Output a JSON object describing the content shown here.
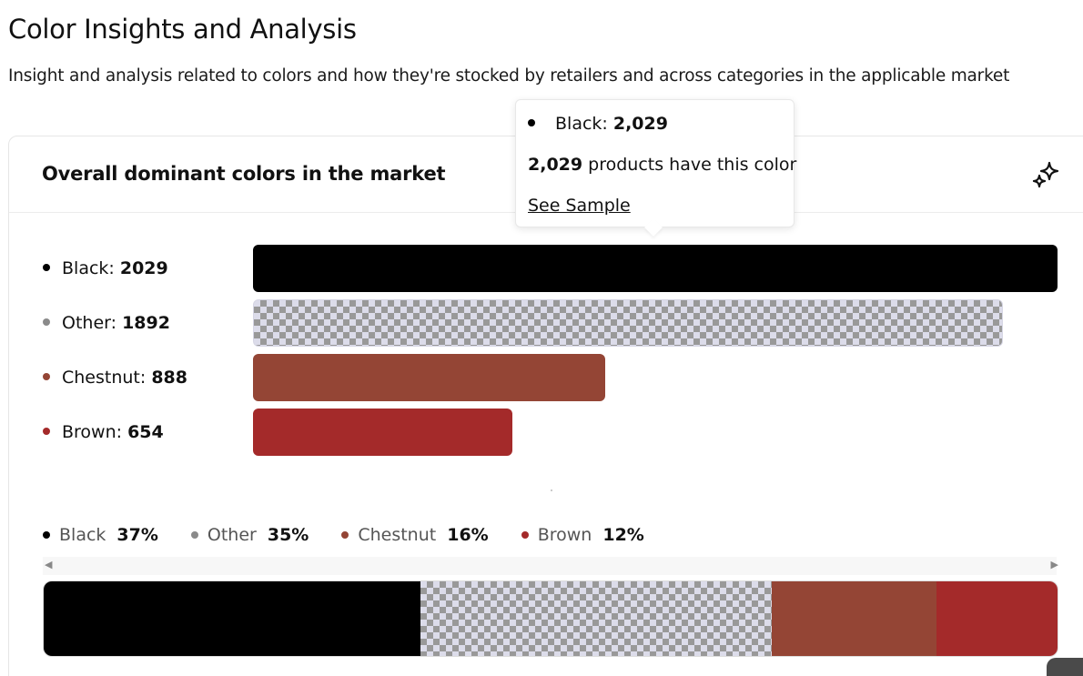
{
  "page": {
    "title": "Color Insights and Analysis",
    "subtitle": "Insight and analysis related to colors and how they're stocked by retailers and across categories in the applicable market"
  },
  "card": {
    "title": "Overall dominant colors in the market",
    "icon": "sparkle-icon"
  },
  "tooltip": {
    "label": "Black: ",
    "value": "2,029",
    "count": "2,029",
    "suffix": " products have this color",
    "link": "See Sample"
  },
  "chart_data": [
    {
      "type": "bar",
      "orientation": "horizontal",
      "categories": [
        "Black",
        "Other",
        "Chestnut",
        "Brown"
      ],
      "values": [
        2029,
        1892,
        888,
        654
      ],
      "labels": [
        "Black: ",
        "Other: ",
        "Chestnut: ",
        "Brown: "
      ],
      "colors": [
        "#000000",
        "pattern",
        "#944535",
        "#A42A2A"
      ],
      "xlim": [
        0,
        2029
      ]
    },
    {
      "type": "bar",
      "orientation": "stacked-100",
      "categories": [
        "Black",
        "Other",
        "Chestnut",
        "Brown"
      ],
      "percent_labels": [
        "37%",
        "35%",
        "16%",
        "12%"
      ],
      "values": [
        2029,
        1892,
        888,
        654
      ],
      "colors": [
        "#000000",
        "pattern",
        "#944535",
        "#A42A2A"
      ],
      "legend": "top-left"
    }
  ]
}
